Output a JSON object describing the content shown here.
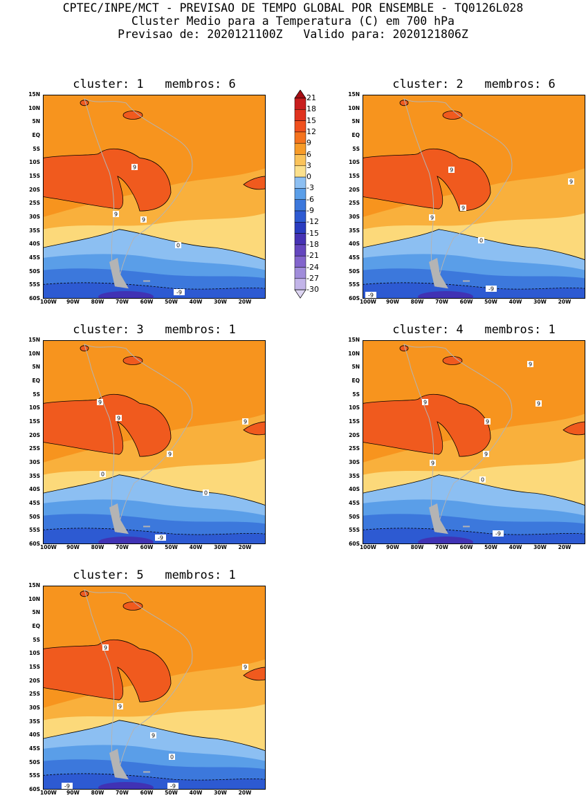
{
  "header": {
    "line1": "CPTEC/INPE/MCT - PREVISAO DE TEMPO GLOBAL POR ENSEMBLE - TQ0126L028",
    "line2": "Cluster Medio para a Temperatura (C) em 700 hPa",
    "line3": "Previsao de: 2020121100Z   Valido para: 2020121806Z"
  },
  "axes": {
    "lat_ticks": [
      "15N",
      "10N",
      "5N",
      "EQ",
      "5S",
      "10S",
      "15S",
      "20S",
      "25S",
      "30S",
      "35S",
      "40S",
      "45S",
      "50S",
      "55S",
      "60S"
    ],
    "lon_ticks": [
      "100W",
      "90W",
      "80W",
      "70W",
      "60W",
      "50W",
      "40W",
      "30W",
      "20W"
    ]
  },
  "colorbar": {
    "labels": [
      "21",
      "18",
      "15",
      "12",
      "9",
      "6",
      "3",
      "0",
      "-3",
      "-6",
      "-9",
      "-12",
      "-15",
      "-18",
      "-21",
      "-24",
      "-27",
      "-30"
    ],
    "colors": [
      "#a50f15",
      "#c81e1e",
      "#e0321e",
      "#f0501e",
      "#f5731e",
      "#f79b28",
      "#fac35a",
      "#fbe08c",
      "#8cbff2",
      "#5a9ee8",
      "#3c78dc",
      "#2d5ad2",
      "#2a3cc0",
      "#4632b4",
      "#6446be",
      "#8264cc",
      "#a08cda",
      "#c2b4e8",
      "#ddd5f2"
    ]
  },
  "palette": {
    "o12": "#f05a1e",
    "o9": "#f7941e",
    "o6": "#f9b03c",
    "o3": "#fcd97a",
    "b0": "#8cbff2",
    "bm3": "#5a9ee8",
    "bm6": "#3c78dc",
    "bm9": "#2d5ad2",
    "bm12": "#4032b4",
    "land": "#b4b4b4"
  },
  "panels": [
    {
      "id": 1,
      "title": "cluster: 1   membros: 6",
      "labels": [
        "9",
        "9",
        "9",
        "0",
        "-9"
      ]
    },
    {
      "id": 2,
      "title": "cluster: 2   membros: 6",
      "labels": [
        "9",
        "9",
        "9",
        "9",
        "0",
        "-9",
        "-9"
      ]
    },
    {
      "id": 3,
      "title": "cluster: 3   membros: 1",
      "labels": [
        "9",
        "9",
        "9",
        "9",
        "0",
        "0",
        "-9"
      ]
    },
    {
      "id": 4,
      "title": "cluster: 4   membros: 1",
      "labels": [
        "9",
        "9",
        "9",
        "9",
        "9",
        "9",
        "0",
        "-9"
      ]
    },
    {
      "id": 5,
      "title": "cluster: 5   membros: 1",
      "labels": [
        "9",
        "9",
        "9",
        "9",
        "0",
        "-9",
        "-9"
      ]
    }
  ]
}
